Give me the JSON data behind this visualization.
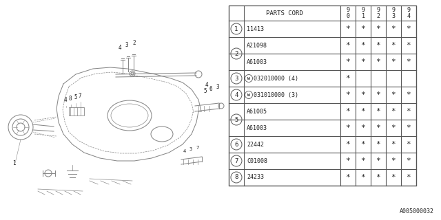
{
  "part_code_label": "PARTS CORD",
  "year_headers": [
    "9\n0",
    "9\n1",
    "9\n2",
    "9\n3",
    "9\n4"
  ],
  "rows": [
    {
      "num": "1",
      "part": "11413",
      "marks": [
        true,
        true,
        true,
        true,
        true
      ],
      "w_mark": false
    },
    {
      "num": "2",
      "part": "A21098",
      "marks": [
        true,
        true,
        true,
        true,
        true
      ],
      "w_mark": false
    },
    {
      "num": "2",
      "part": "A61003",
      "marks": [
        true,
        true,
        true,
        true,
        true
      ],
      "w_mark": false
    },
    {
      "num": "3",
      "part": "032010000 (4)",
      "marks": [
        true,
        false,
        false,
        false,
        false
      ],
      "w_mark": true
    },
    {
      "num": "4",
      "part": "031010000 (3)",
      "marks": [
        true,
        true,
        true,
        true,
        true
      ],
      "w_mark": true
    },
    {
      "num": "5",
      "part": "A61005",
      "marks": [
        true,
        true,
        true,
        true,
        true
      ],
      "w_mark": false
    },
    {
      "num": "5",
      "part": "A61003",
      "marks": [
        true,
        true,
        true,
        true,
        true
      ],
      "w_mark": false
    },
    {
      "num": "6",
      "part": "22442",
      "marks": [
        true,
        true,
        true,
        true,
        true
      ],
      "w_mark": false
    },
    {
      "num": "7",
      "part": "C01008",
      "marks": [
        true,
        true,
        true,
        true,
        true
      ],
      "w_mark": false
    },
    {
      "num": "8",
      "part": "24233",
      "marks": [
        true,
        true,
        true,
        true,
        true
      ],
      "w_mark": false
    }
  ],
  "footer": "A005000032",
  "bg_color": "#ffffff",
  "lc": "#777777",
  "tc": "#222222"
}
